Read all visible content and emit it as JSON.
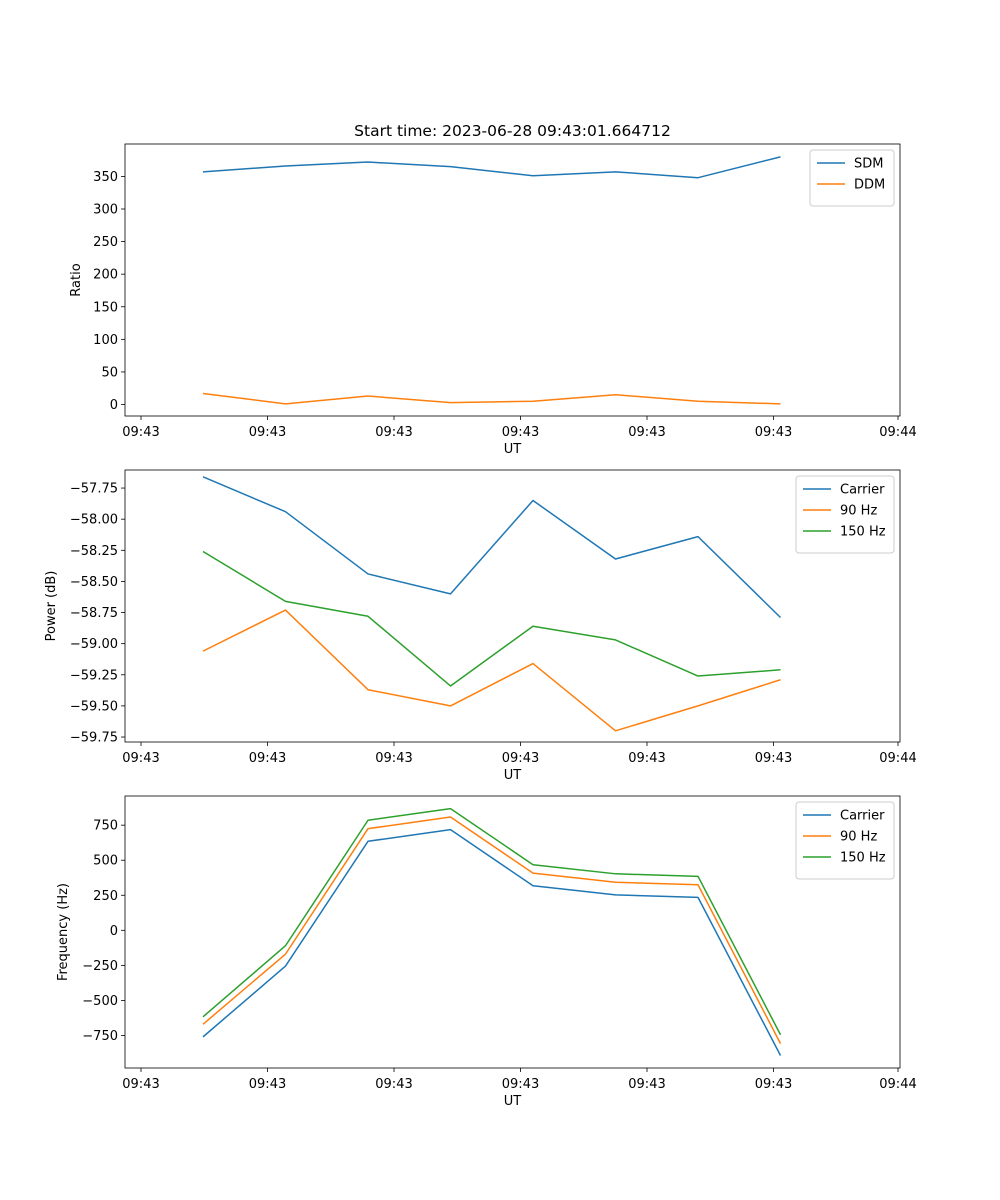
{
  "chart_data": [
    {
      "type": "line",
      "title": "Start time: 2023-06-28 09:43:01.664712",
      "xlabel": "UT",
      "ylabel": "Ratio",
      "x_tick_labels": [
        "09:43",
        "09:43",
        "09:43",
        "09:43",
        "09:43",
        "09:43",
        "09:44"
      ],
      "y_ticks": [
        0,
        50,
        100,
        150,
        200,
        250,
        300,
        350
      ],
      "ylim": [
        -17.6,
        399.7
      ],
      "legend_position": "upper right",
      "series": [
        {
          "name": "SDM",
          "color": "#1f77b4",
          "values": [
            357,
            366,
            372,
            365,
            351,
            357,
            348,
            380
          ]
        },
        {
          "name": "DDM",
          "color": "#ff7f0e",
          "values": [
            17,
            1,
            13,
            3,
            5,
            15,
            5,
            1
          ]
        }
      ]
    },
    {
      "type": "line",
      "title": "",
      "xlabel": "UT",
      "ylabel": "Power (dB)",
      "x_tick_labels": [
        "09:43",
        "09:43",
        "09:43",
        "09:43",
        "09:43",
        "09:43",
        "09:44"
      ],
      "y_ticks": [
        -57.75,
        -58.0,
        -58.25,
        -58.5,
        -58.75,
        -59.0,
        -59.25,
        -59.5,
        -59.75
      ],
      "y_tick_labels": [
        "−57.75",
        "−58.00",
        "−58.25",
        "−58.50",
        "−58.75",
        "−59.00",
        "−59.25",
        "−59.50",
        "−59.75"
      ],
      "ylim": [
        -59.79,
        -57.605
      ],
      "legend_position": "upper right",
      "series": [
        {
          "name": "Carrier",
          "color": "#1f77b4",
          "values": [
            -57.66,
            -57.94,
            -58.44,
            -58.6,
            -57.85,
            -58.32,
            -58.14,
            -58.79
          ]
        },
        {
          "name": "90 Hz",
          "color": "#ff7f0e",
          "values": [
            -59.06,
            -58.73,
            -59.37,
            -59.5,
            -59.16,
            -59.7,
            -59.5,
            -59.29
          ]
        },
        {
          "name": "150 Hz",
          "color": "#2ca02c",
          "values": [
            -58.26,
            -58.66,
            -58.78,
            -59.34,
            -58.86,
            -58.97,
            -59.26,
            -59.21
          ]
        }
      ]
    },
    {
      "type": "line",
      "title": "",
      "xlabel": "UT",
      "ylabel": "Frequency (Hz)",
      "x_tick_labels": [
        "09:43",
        "09:43",
        "09:43",
        "09:43",
        "09:43",
        "09:43",
        "09:44"
      ],
      "y_ticks": [
        -750,
        -500,
        -250,
        0,
        250,
        500,
        750
      ],
      "y_tick_labels": [
        "−750",
        "−500",
        "−250",
        "0",
        "250",
        "500",
        "750"
      ],
      "ylim": [
        -982,
        958
      ],
      "legend_position": "upper right",
      "series": [
        {
          "name": "Carrier",
          "color": "#1f77b4",
          "values": [
            -760,
            -255,
            635,
            718,
            318,
            253,
            235,
            -893
          ]
        },
        {
          "name": "90 Hz",
          "color": "#ff7f0e",
          "values": [
            -670,
            -170,
            725,
            808,
            408,
            343,
            325,
            -808
          ]
        },
        {
          "name": "150 Hz",
          "color": "#2ca02c",
          "values": [
            -617,
            -110,
            785,
            868,
            468,
            403,
            385,
            -745
          ]
        }
      ]
    }
  ]
}
